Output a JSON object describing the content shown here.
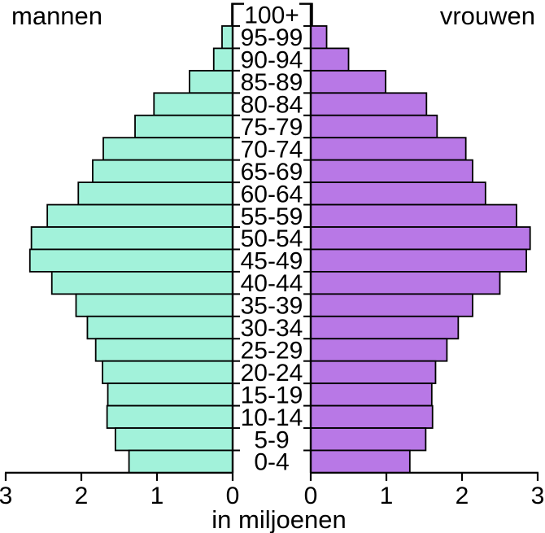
{
  "chart_data": {
    "type": "bar",
    "variant": "population-pyramid",
    "title_left": "mannen",
    "title_right": "vrouwen",
    "xlabel": "in miljoenen",
    "unit": "millions",
    "grid": false,
    "legend_position": "side-titles",
    "categories_top_to_bottom": [
      "100+",
      "95-99",
      "90-94",
      "85-89",
      "80-84",
      "75-79",
      "70-74",
      "65-69",
      "60-64",
      "55-59",
      "50-54",
      "45-49",
      "40-44",
      "35-39",
      "30-34",
      "25-29",
      "20-24",
      "15-19",
      "10-14",
      "5-9",
      "0-4"
    ],
    "series": [
      {
        "name": "mannen",
        "side": "left",
        "color": "#A2F2DA",
        "values": [
          0.01,
          0.14,
          0.25,
          0.57,
          1.04,
          1.29,
          1.71,
          1.85,
          2.04,
          2.45,
          2.66,
          2.68,
          2.39,
          2.07,
          1.92,
          1.81,
          1.72,
          1.65,
          1.66,
          1.55,
          1.37
        ]
      },
      {
        "name": "vrouwen",
        "side": "right",
        "color": "#B878E6",
        "values": [
          0.02,
          0.21,
          0.5,
          0.99,
          1.53,
          1.67,
          2.05,
          2.14,
          2.31,
          2.72,
          2.9,
          2.85,
          2.5,
          2.14,
          1.95,
          1.8,
          1.65,
          1.6,
          1.61,
          1.52,
          1.31
        ]
      }
    ],
    "x_ticks": [
      "0",
      "1",
      "2",
      "3"
    ],
    "xlim": [
      0,
      3
    ],
    "bar_outline": "#000000"
  }
}
